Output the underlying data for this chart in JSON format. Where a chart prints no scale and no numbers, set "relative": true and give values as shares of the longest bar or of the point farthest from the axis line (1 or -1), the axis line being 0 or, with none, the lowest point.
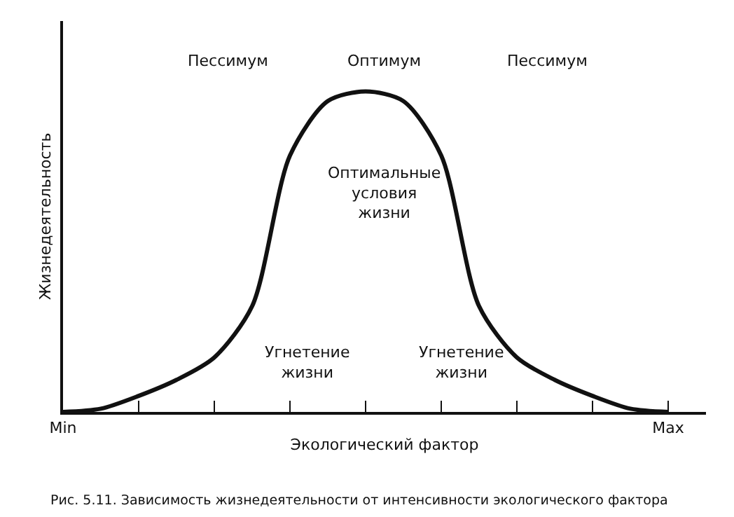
{
  "chart_data": {
    "type": "line",
    "relative": true,
    "xlabel": "Экологический фактор",
    "ylabel": "Жизнедеятельность",
    "categories": [
      "Min",
      null,
      null,
      null,
      null,
      null,
      null,
      null,
      null,
      null,
      null,
      null,
      null,
      null,
      null,
      null,
      "Max"
    ],
    "series": [
      {
        "color": "#111111",
        "values": [
          0,
          0.01,
          0.05,
          0.1,
          0.17,
          0.33,
          0.8,
          0.97,
          1,
          0.97,
          0.8,
          0.33,
          0.17,
          0.1,
          0.05,
          0.01,
          0
        ]
      }
    ],
    "annotations": [
      "Пессимум",
      "Оптимум",
      "Пессимум",
      "Оптимальные условия жизни",
      "Угнетение жизни",
      "Угнетение жизни",
      "Рис. 5.11. Зависимость жизнедеятельности от интенсивности экологического фактора"
    ],
    "grid": false,
    "marker": "none",
    "line_style": "solid"
  }
}
